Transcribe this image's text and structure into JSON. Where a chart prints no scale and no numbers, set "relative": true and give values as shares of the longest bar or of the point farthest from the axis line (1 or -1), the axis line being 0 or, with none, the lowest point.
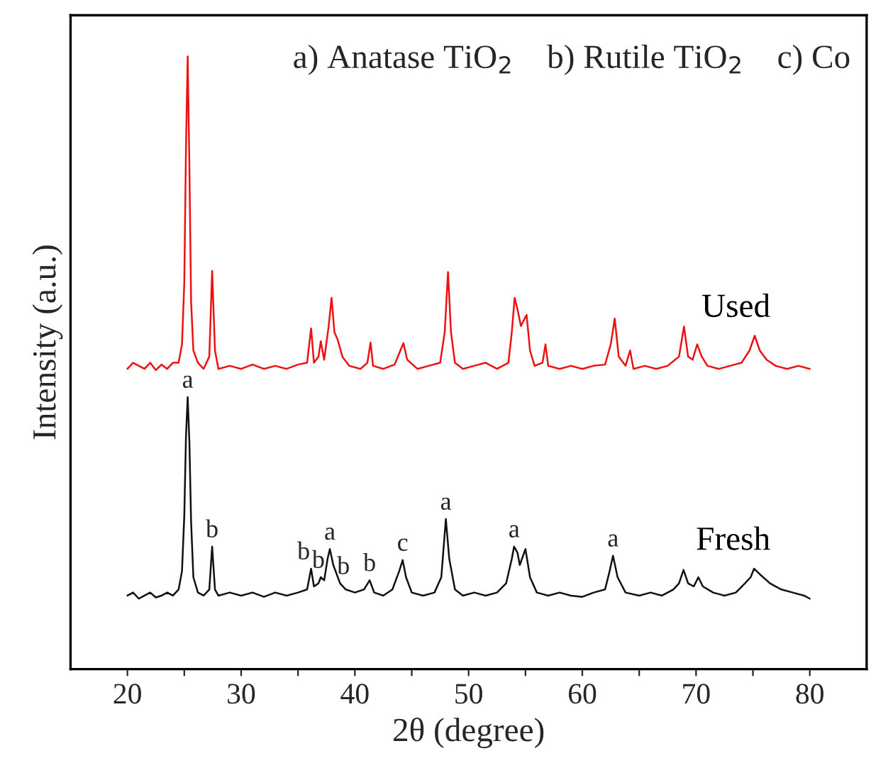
{
  "chart_data": {
    "type": "line",
    "relative": true,
    "xlabel": "2θ (degree)",
    "ylabel": "Intensity (a.u.)",
    "xlim": [
      15,
      85
    ],
    "xticks": [
      20,
      {
        "value": 25,
        "label": null
      },
      30,
      {
        "value": 35,
        "label": null
      },
      40,
      {
        "value": 45,
        "label": null
      },
      50,
      {
        "value": 55,
        "label": null
      },
      60,
      {
        "value": 65,
        "label": null
      },
      70,
      {
        "value": 75,
        "label": null
      },
      80
    ],
    "tick_labels": "x",
    "grid": false,
    "legend": false,
    "marker": "none",
    "line_style": "solid",
    "series": [
      {
        "name": "Used",
        "color": "#ee1111",
        "x": [
          20,
          20.5,
          21,
          21.5,
          22,
          22.5,
          23,
          23.5,
          24,
          24.5,
          24.8,
          25.0,
          25.15,
          25.3,
          25.45,
          25.6,
          25.8,
          26.2,
          26.7,
          27.2,
          27.45,
          27.7,
          28,
          29,
          30,
          31,
          32,
          33,
          34,
          35,
          35.8,
          36.15,
          36.4,
          36.8,
          37.0,
          37.3,
          37.7,
          37.95,
          38.2,
          38.5,
          38.9,
          39.5,
          40.5,
          41.1,
          41.38,
          41.6,
          42.5,
          43.5,
          44.0,
          44.27,
          44.6,
          45.5,
          46.5,
          47.5,
          47.9,
          48.19,
          48.45,
          48.8,
          49.5,
          50.5,
          51.5,
          52.5,
          53.5,
          53.8,
          54.05,
          54.3,
          54.6,
          55.1,
          55.4,
          55.8,
          56.5,
          56.76,
          57,
          58,
          59,
          60,
          61,
          62,
          62.5,
          62.85,
          63.2,
          63.8,
          64.2,
          64.5,
          65.5,
          66.5,
          67.5,
          68.5,
          68.94,
          69.3,
          69.7,
          70.1,
          70.5,
          71,
          72,
          73,
          74,
          74.7,
          75.16,
          75.6,
          76.2,
          77,
          78,
          79,
          80
        ],
        "values": [
          0.49,
          0.5,
          0.495,
          0.49,
          0.5,
          0.488,
          0.497,
          0.49,
          0.5,
          0.5,
          0.53,
          0.63,
          0.85,
          1.0,
          0.82,
          0.6,
          0.52,
          0.5,
          0.49,
          0.51,
          0.65,
          0.52,
          0.49,
          0.495,
          0.49,
          0.497,
          0.49,
          0.495,
          0.49,
          0.497,
          0.5,
          0.556,
          0.5,
          0.51,
          0.535,
          0.505,
          0.56,
          0.606,
          0.55,
          0.537,
          0.51,
          0.495,
          0.49,
          0.5,
          0.533,
          0.495,
          0.49,
          0.497,
          0.52,
          0.532,
          0.505,
          0.49,
          0.495,
          0.5,
          0.55,
          0.648,
          0.55,
          0.5,
          0.49,
          0.495,
          0.5,
          0.49,
          0.5,
          0.55,
          0.606,
          0.587,
          0.56,
          0.578,
          0.52,
          0.495,
          0.5,
          0.53,
          0.495,
          0.49,
          0.495,
          0.49,
          0.495,
          0.497,
          0.53,
          0.572,
          0.51,
          0.495,
          0.52,
          0.49,
          0.495,
          0.49,
          0.495,
          0.51,
          0.559,
          0.51,
          0.505,
          0.53,
          0.51,
          0.495,
          0.49,
          0.495,
          0.5,
          0.52,
          0.544,
          0.52,
          0.505,
          0.495,
          0.49,
          0.495,
          0.49
        ]
      },
      {
        "name": "Fresh",
        "color": "#111111",
        "x": [
          20,
          20.5,
          21,
          21.5,
          22,
          22.5,
          23,
          23.5,
          24,
          24.5,
          24.8,
          25.0,
          25.15,
          25.3,
          25.45,
          25.6,
          25.8,
          26.2,
          26.7,
          27.2,
          27.45,
          27.7,
          28,
          29,
          30,
          31,
          32,
          33,
          34,
          35,
          35.8,
          36.15,
          36.4,
          36.8,
          37.0,
          37.3,
          37.6,
          37.8,
          38.1,
          38.7,
          39.2,
          40,
          40.8,
          41.3,
          41.7,
          42.5,
          43.3,
          43.9,
          44.2,
          44.5,
          45,
          46,
          47,
          47.6,
          48.0,
          48.3,
          48.8,
          49.5,
          50.5,
          51.5,
          52.5,
          53.3,
          53.8,
          54.0,
          54.3,
          54.5,
          55.0,
          55.4,
          56,
          57,
          58,
          59,
          60,
          61,
          62,
          62.4,
          62.7,
          63.1,
          63.8,
          65,
          66,
          67,
          68,
          68.5,
          68.9,
          69.3,
          69.8,
          70.2,
          70.6,
          71.5,
          72.5,
          73.5,
          74.3,
          74.8,
          75.1,
          75.6,
          76.5,
          77.5,
          78.5,
          79.5,
          80
        ],
        "values": [
          0.12,
          0.125,
          0.115,
          0.12,
          0.125,
          0.117,
          0.12,
          0.125,
          0.12,
          0.13,
          0.16,
          0.25,
          0.38,
          0.444,
          0.37,
          0.24,
          0.15,
          0.125,
          0.12,
          0.13,
          0.2,
          0.13,
          0.12,
          0.125,
          0.12,
          0.125,
          0.118,
          0.125,
          0.12,
          0.125,
          0.13,
          0.164,
          0.135,
          0.14,
          0.15,
          0.145,
          0.18,
          0.196,
          0.17,
          0.14,
          0.13,
          0.125,
          0.13,
          0.145,
          0.125,
          0.12,
          0.13,
          0.16,
          0.178,
          0.15,
          0.125,
          0.12,
          0.125,
          0.15,
          0.245,
          0.18,
          0.13,
          0.12,
          0.125,
          0.12,
          0.125,
          0.14,
          0.18,
          0.2,
          0.19,
          0.17,
          0.196,
          0.15,
          0.125,
          0.12,
          0.125,
          0.12,
          0.118,
          0.125,
          0.13,
          0.16,
          0.185,
          0.15,
          0.125,
          0.12,
          0.125,
          0.12,
          0.13,
          0.14,
          0.162,
          0.14,
          0.135,
          0.15,
          0.135,
          0.125,
          0.12,
          0.125,
          0.14,
          0.15,
          0.164,
          0.155,
          0.14,
          0.13,
          0.125,
          0.12,
          0.115
        ]
      }
    ],
    "annotations": [
      "a) Anatase TiO$_{2}$    b) Rutile TiO$_{2}$    c) Co",
      {
        "text": "a",
        "x": 25.3,
        "y": 0.444
      },
      {
        "text": "b",
        "x": 27.45,
        "y": 0.2
      },
      {
        "text": "b",
        "x": 35.5,
        "y": 0.164
      },
      {
        "text": "b",
        "x": 36.8,
        "y": 0.15
      },
      {
        "text": "a",
        "x": 37.8,
        "y": 0.196
      },
      {
        "text": "b",
        "x": 39.0,
        "y": 0.14
      },
      {
        "text": "b",
        "x": 41.3,
        "y": 0.145
      },
      {
        "text": "c",
        "x": 44.2,
        "y": 0.178
      },
      {
        "text": "a",
        "x": 48.0,
        "y": 0.245
      },
      {
        "text": "a",
        "x": 54.0,
        "y": 0.2
      },
      {
        "text": "a",
        "x": 62.7,
        "y": 0.185
      }
    ]
  }
}
